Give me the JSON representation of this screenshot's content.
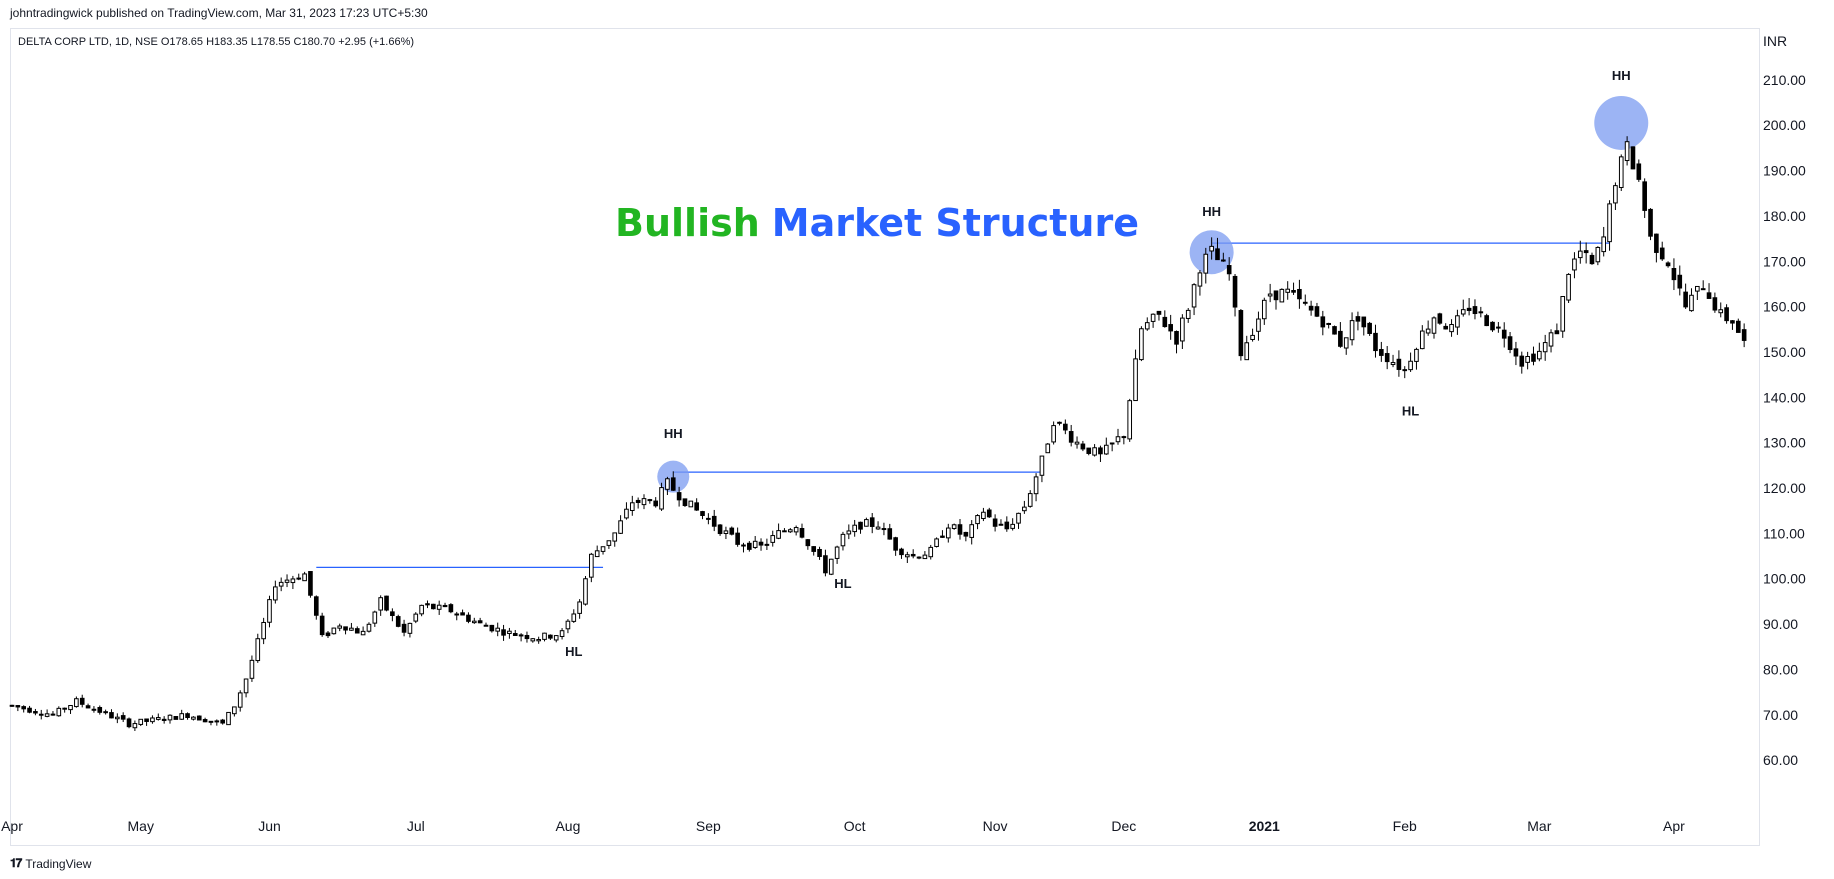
{
  "header": {
    "published": "johntradingwick published on TradingView.com, Mar 31, 2023 17:23 UTC+5:30"
  },
  "footer": {
    "brand": "TradingView",
    "logo": "tv-logo-icon"
  },
  "colors": {
    "bullish": "#22b522",
    "structure": "#2962ff",
    "line": "#2962ff",
    "circle": "#7b9bf0",
    "candle": "#000000"
  },
  "chart_data": {
    "type": "candlestick",
    "legend": "DELTA CORP LTD, 1D, NSE  O178.65  H183.35  L178.55  C180.70  +2.95 (+1.66%)",
    "currency": "INR",
    "title_part1": "Bullish",
    "title_part2": "Market Structure",
    "y_ticks": [
      "210.00",
      "200.00",
      "190.00",
      "180.00",
      "170.00",
      "160.00",
      "150.00",
      "140.00",
      "130.00",
      "120.00",
      "110.00",
      "100.00",
      "90.00",
      "80.00",
      "70.00",
      "60.00"
    ],
    "y_tick_values": [
      210,
      200,
      190,
      180,
      170,
      160,
      150,
      140,
      130,
      120,
      110,
      100,
      90,
      80,
      70,
      60
    ],
    "ylim": [
      49,
      221
    ],
    "x_labels": [
      {
        "label": "Apr",
        "t": 0
      },
      {
        "label": "May",
        "t": 22
      },
      {
        "label": "Jun",
        "t": 44
      },
      {
        "label": "Jul",
        "t": 69
      },
      {
        "label": "Aug",
        "t": 95
      },
      {
        "label": "Sep",
        "t": 119
      },
      {
        "label": "Oct",
        "t": 144
      },
      {
        "label": "Nov",
        "t": 168
      },
      {
        "label": "Dec",
        "t": 190
      },
      {
        "label": "2021",
        "t": 214
      },
      {
        "label": "Feb",
        "t": 238
      },
      {
        "label": "Mar",
        "t": 261
      },
      {
        "label": "Apr",
        "t": 284
      }
    ],
    "waypoints": [
      [
        0,
        72
      ],
      [
        7,
        70
      ],
      [
        11,
        73
      ],
      [
        20,
        68
      ],
      [
        30,
        70
      ],
      [
        36,
        68
      ],
      [
        38,
        72
      ],
      [
        40,
        78
      ],
      [
        43,
        90
      ],
      [
        45,
        99
      ],
      [
        50,
        101
      ],
      [
        53,
        87
      ],
      [
        56,
        90
      ],
      [
        60,
        88
      ],
      [
        63,
        95
      ],
      [
        67,
        88
      ],
      [
        70,
        94
      ],
      [
        75,
        93
      ],
      [
        80,
        90
      ],
      [
        85,
        88
      ],
      [
        90,
        87
      ],
      [
        94,
        88
      ],
      [
        97,
        95
      ],
      [
        99,
        105
      ],
      [
        103,
        110
      ],
      [
        106,
        117
      ],
      [
        110,
        117
      ],
      [
        112,
        121
      ],
      [
        116,
        116
      ],
      [
        120,
        112
      ],
      [
        124,
        108
      ],
      [
        128,
        107
      ],
      [
        131,
        110
      ],
      [
        134,
        112
      ],
      [
        137,
        106
      ],
      [
        139,
        102
      ],
      [
        142,
        109
      ],
      [
        145,
        112
      ],
      [
        148,
        112
      ],
      [
        151,
        107
      ],
      [
        154,
        105
      ],
      [
        157,
        106
      ],
      [
        160,
        112
      ],
      [
        163,
        109
      ],
      [
        166,
        115
      ],
      [
        168,
        112
      ],
      [
        170,
        111
      ],
      [
        173,
        116
      ],
      [
        176,
        126
      ],
      [
        178,
        135
      ],
      [
        182,
        130
      ],
      [
        186,
        127
      ],
      [
        190,
        132
      ],
      [
        193,
        155
      ],
      [
        196,
        158
      ],
      [
        199,
        153
      ],
      [
        201,
        160
      ],
      [
        203,
        169
      ],
      [
        205,
        172
      ],
      [
        208,
        167
      ],
      [
        210,
        150
      ],
      [
        212,
        155
      ],
      [
        215,
        163
      ],
      [
        218,
        163
      ],
      [
        221,
        160
      ],
      [
        224,
        157
      ],
      [
        227,
        152
      ],
      [
        230,
        158
      ],
      [
        233,
        151
      ],
      [
        236,
        148
      ],
      [
        238,
        146
      ],
      [
        240,
        152
      ],
      [
        243,
        158
      ],
      [
        246,
        155
      ],
      [
        249,
        160
      ],
      [
        252,
        157
      ],
      [
        255,
        154
      ],
      [
        258,
        148
      ],
      [
        261,
        150
      ],
      [
        264,
        155
      ],
      [
        266,
        168
      ],
      [
        268,
        172
      ],
      [
        270,
        169
      ],
      [
        272,
        175
      ],
      [
        274,
        188
      ],
      [
        276,
        195
      ],
      [
        278,
        188
      ],
      [
        280,
        175
      ],
      [
        283,
        170
      ],
      [
        286,
        160
      ],
      [
        289,
        165
      ],
      [
        292,
        158
      ],
      [
        294,
        157
      ],
      [
        296,
        152
      ]
    ],
    "levels": [
      {
        "t0": 52,
        "t1": 101,
        "price": 102.5
      },
      {
        "t0": 113,
        "t1": 176,
        "price": 123.5
      },
      {
        "t0": 205,
        "t1": 273,
        "price": 174.0
      }
    ],
    "circles": [
      {
        "t": 113,
        "price": 122.5
      },
      {
        "t": 205,
        "price": 172.0
      },
      {
        "t": 275,
        "price": 200.5
      }
    ],
    "labels": [
      {
        "text": "HL",
        "t": 96,
        "price": 83
      },
      {
        "text": "HH",
        "t": 113,
        "price": 131
      },
      {
        "text": "HL",
        "t": 142,
        "price": 98
      },
      {
        "text": "HH",
        "t": 205,
        "price": 180
      },
      {
        "text": "HL",
        "t": 239,
        "price": 136
      },
      {
        "text": "HH",
        "t": 275,
        "price": 210
      }
    ],
    "t_max": 297
  }
}
